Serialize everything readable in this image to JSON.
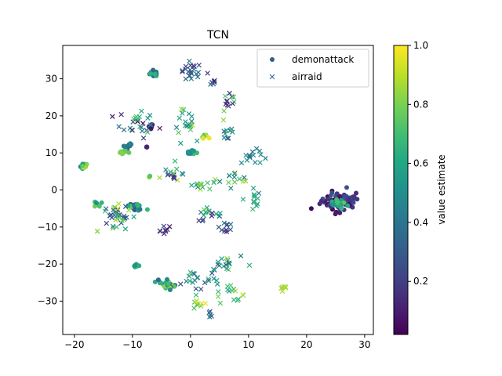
{
  "chart_data": {
    "type": "scatter",
    "title": "TCN",
    "xlabel": "",
    "ylabel": "",
    "xlim": [
      -22,
      31.5
    ],
    "ylim": [
      -39,
      39
    ],
    "xticks": [
      -20,
      -10,
      0,
      10,
      20,
      30
    ],
    "yticks": [
      -30,
      -20,
      -10,
      0,
      10,
      20,
      30
    ],
    "grid": false,
    "legend": {
      "placement": "top-right",
      "entries": [
        "demonattack",
        "airraid"
      ]
    },
    "colorbar": {
      "label": "value estimate",
      "colormap": "viridis",
      "range": [
        0.02,
        1.0
      ],
      "ticks": [
        0.2,
        0.4,
        0.6,
        0.8,
        1.0
      ],
      "tick_labels": [
        "0.2",
        "0.4",
        "0.6",
        "0.8",
        "1.0"
      ]
    },
    "series": [
      {
        "name": "demonattack",
        "marker": "circle",
        "clusters": [
          {
            "center": [
              -6.3,
              31.5
            ],
            "spread": [
              0.6,
              0.7
            ],
            "count": 22,
            "value_range": [
              0.3,
              0.7
            ]
          },
          {
            "center": [
              -18.5,
              6.5
            ],
            "spread": [
              0.7,
              0.5
            ],
            "count": 16,
            "value_range": [
              0.4,
              0.95
            ]
          },
          {
            "center": [
              -11,
              12
            ],
            "spread": [
              0.7,
              0.6
            ],
            "count": 10,
            "value_range": [
              0.15,
              0.6
            ]
          },
          {
            "center": [
              -11.5,
              10
            ],
            "spread": [
              0.6,
              0.5
            ],
            "count": 12,
            "value_range": [
              0.7,
              0.95
            ]
          },
          {
            "center": [
              0,
              10
            ],
            "spread": [
              0.7,
              0.6
            ],
            "count": 14,
            "value_range": [
              0.4,
              0.9
            ]
          },
          {
            "center": [
              2.5,
              14.5
            ],
            "spread": [
              0.6,
              0.4
            ],
            "count": 10,
            "value_range": [
              0.7,
              1.0
            ]
          },
          {
            "center": [
              -7,
              17
            ],
            "spread": [
              0.6,
              0.6
            ],
            "count": 8,
            "value_range": [
              0.05,
              0.3
            ]
          },
          {
            "center": [
              -16,
              -4
            ],
            "spread": [
              0.5,
              0.5
            ],
            "count": 8,
            "value_range": [
              0.5,
              0.9
            ]
          },
          {
            "center": [
              -9.5,
              -4.5
            ],
            "spread": [
              1.2,
              1.2
            ],
            "count": 30,
            "value_range": [
              0.2,
              0.8
            ]
          },
          {
            "center": [
              -9.5,
              -20.5
            ],
            "spread": [
              0.4,
              0.4
            ],
            "count": 10,
            "value_range": [
              0.5,
              0.8
            ]
          },
          {
            "center": [
              -4,
              -25.5
            ],
            "spread": [
              1.0,
              1.0
            ],
            "count": 30,
            "value_range": [
              0.3,
              0.9
            ]
          },
          {
            "center": [
              25.5,
              -3
            ],
            "spread": [
              2.3,
              2.2
            ],
            "count": 90,
            "value_range": [
              0.02,
              0.3
            ]
          },
          {
            "center": [
              25.5,
              -4
            ],
            "spread": [
              1.5,
              1.2
            ],
            "count": 18,
            "value_range": [
              0.5,
              0.8
            ]
          },
          {
            "center": [
              -7,
              3.5
            ],
            "spread": [
              0.3,
              0.3
            ],
            "count": 4,
            "value_range": [
              0.7,
              0.9
            ]
          },
          {
            "center": [
              -7.5,
              11.5
            ],
            "spread": [
              0.3,
              0.3
            ],
            "count": 3,
            "value_range": [
              0.05,
              0.2
            ]
          }
        ]
      },
      {
        "name": "airraid",
        "marker": "x",
        "clusters": [
          {
            "center": [
              0,
              32
            ],
            "spread": [
              1.5,
              2.2
            ],
            "count": 22,
            "value_range": [
              0.1,
              0.5
            ]
          },
          {
            "center": [
              3.5,
              29
            ],
            "spread": [
              0.7,
              1.0
            ],
            "count": 6,
            "value_range": [
              0.1,
              0.4
            ]
          },
          {
            "center": [
              6.5,
              24
            ],
            "spread": [
              1.3,
              3.0
            ],
            "count": 14,
            "value_range": [
              0.05,
              0.95
            ]
          },
          {
            "center": [
              -1,
              18
            ],
            "spread": [
              2.0,
              3.0
            ],
            "count": 20,
            "value_range": [
              0.4,
              0.9
            ]
          },
          {
            "center": [
              -9,
              18
            ],
            "spread": [
              2.6,
              3.0
            ],
            "count": 26,
            "value_range": [
              0.02,
              0.8
            ]
          },
          {
            "center": [
              6.5,
              15
            ],
            "spread": [
              1.5,
              1.5
            ],
            "count": 10,
            "value_range": [
              0.3,
              0.7
            ]
          },
          {
            "center": [
              10.5,
              9
            ],
            "spread": [
              2.5,
              1.5
            ],
            "count": 14,
            "value_range": [
              0.3,
              0.6
            ]
          },
          {
            "center": [
              7.5,
              3
            ],
            "spread": [
              2.0,
              2.0
            ],
            "count": 14,
            "value_range": [
              0.4,
              0.9
            ]
          },
          {
            "center": [
              11,
              -1
            ],
            "spread": [
              0.8,
              3.0
            ],
            "count": 12,
            "value_range": [
              0.4,
              0.7
            ]
          },
          {
            "center": [
              -3,
              4
            ],
            "spread": [
              2.2,
              2.0
            ],
            "count": 16,
            "value_range": [
              0.1,
              0.9
            ]
          },
          {
            "center": [
              1.5,
              1.5
            ],
            "spread": [
              1.8,
              2.0
            ],
            "count": 14,
            "value_range": [
              0.5,
              0.95
            ]
          },
          {
            "center": [
              -13,
              -7
            ],
            "spread": [
              2.6,
              2.8
            ],
            "count": 36,
            "value_range": [
              0.1,
              0.9
            ]
          },
          {
            "center": [
              -5,
              -11
            ],
            "spread": [
              1.4,
              1.2
            ],
            "count": 8,
            "value_range": [
              0.05,
              0.3
            ]
          },
          {
            "center": [
              3.5,
              -7
            ],
            "spread": [
              2.0,
              2.2
            ],
            "count": 16,
            "value_range": [
              0.1,
              0.9
            ]
          },
          {
            "center": [
              6,
              -10
            ],
            "spread": [
              1.5,
              1.5
            ],
            "count": 10,
            "value_range": [
              0.05,
              0.4
            ]
          },
          {
            "center": [
              6,
              -20
            ],
            "spread": [
              2.5,
              2.0
            ],
            "count": 18,
            "value_range": [
              0.2,
              0.9
            ]
          },
          {
            "center": [
              1,
              -24
            ],
            "spread": [
              2.8,
              2.5
            ],
            "count": 20,
            "value_range": [
              0.2,
              0.7
            ]
          },
          {
            "center": [
              6.5,
              -26.5
            ],
            "spread": [
              2.0,
              2.0
            ],
            "count": 16,
            "value_range": [
              0.5,
              0.95
            ]
          },
          {
            "center": [
              1.5,
              -31
            ],
            "spread": [
              1.4,
              1.3
            ],
            "count": 10,
            "value_range": [
              0.6,
              1.0
            ]
          },
          {
            "center": [
              3.5,
              -33.5
            ],
            "spread": [
              0.4,
              1.0
            ],
            "count": 5,
            "value_range": [
              0.3,
              0.5
            ]
          },
          {
            "center": [
              16,
              -26.5
            ],
            "spread": [
              0.9,
              0.5
            ],
            "count": 8,
            "value_range": [
              0.8,
              1.0
            ]
          },
          {
            "center": [
              -16,
              -11
            ],
            "spread": [
              0.3,
              0.3
            ],
            "count": 2,
            "value_range": [
              0.8,
              0.95
            ]
          }
        ]
      }
    ]
  }
}
